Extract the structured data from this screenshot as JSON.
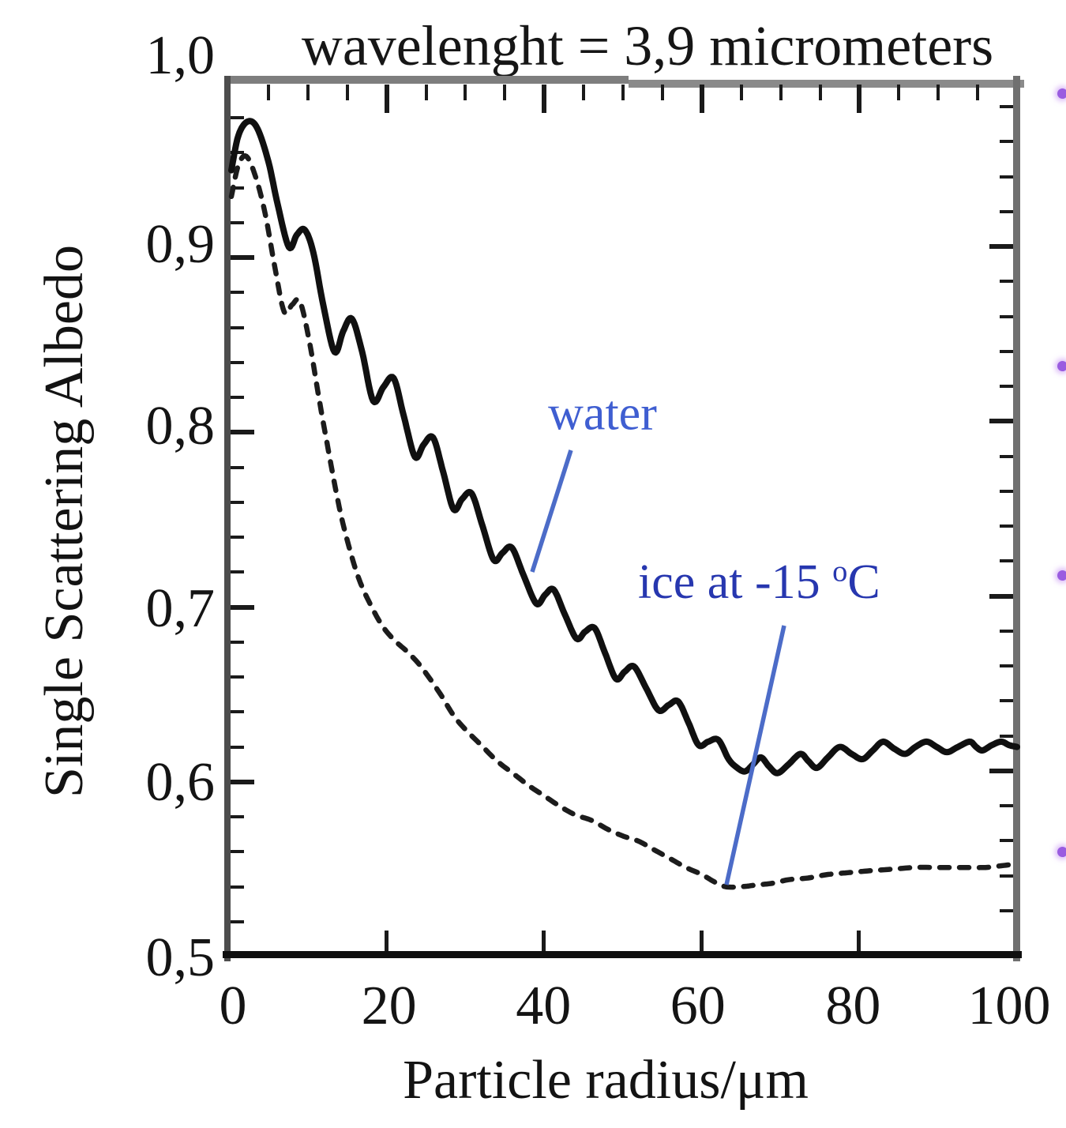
{
  "figure": {
    "title": "wavelenght = 3,9 micrometers",
    "y_axis": {
      "label": "Single Scattering Albedo",
      "ticks": [
        {
          "label": "1,0",
          "value": 1.0
        },
        {
          "label": "0,9",
          "value": 0.9
        },
        {
          "label": "0,8",
          "value": 0.8
        },
        {
          "label": "0,7",
          "value": 0.7
        },
        {
          "label": "0,6",
          "value": 0.6
        },
        {
          "label": "0,5",
          "value": 0.5
        }
      ],
      "range": [
        0.5,
        1.0
      ],
      "minor_step": 0.02
    },
    "x_axis": {
      "label": "Particle radius/μm",
      "ticks": [
        {
          "label": "0",
          "value": 0
        },
        {
          "label": "20",
          "value": 20
        },
        {
          "label": "40",
          "value": 40
        },
        {
          "label": "60",
          "value": 60
        },
        {
          "label": "80",
          "value": 80
        },
        {
          "label": "100",
          "value": 100
        }
      ],
      "range": [
        0,
        100
      ],
      "minor_step": 5
    },
    "annotations": {
      "water": {
        "text": "water",
        "color": "#3f5ed1"
      },
      "ice": {
        "text_main": "ice at -15",
        "sup_text": "o",
        "text_end": "C",
        "color": "#2737af"
      }
    },
    "pointer_color": "#4c6cc8",
    "curve_color": "#101010",
    "artifact_dot_color": "#9a5ce0"
  },
  "chart_data": {
    "type": "line",
    "title": "wavelenght = 3,9 micrometers",
    "xlabel": "Particle radius/μm",
    "ylabel": "Single Scattering Albedo",
    "xlim": [
      0,
      100
    ],
    "ylim": [
      0.5,
      1.0
    ],
    "grid": false,
    "legend_position": "inline-annotations",
    "series": [
      {
        "name": "water",
        "line_style": "solid",
        "points": [
          [
            0.3,
            0.95
          ],
          [
            1.2,
            0.97
          ],
          [
            2.4,
            0.978
          ],
          [
            3.6,
            0.974
          ],
          [
            5.0,
            0.955
          ],
          [
            6.2,
            0.93
          ],
          [
            7.6,
            0.906
          ],
          [
            8.6,
            0.913
          ],
          [
            9.6,
            0.916
          ],
          [
            10.7,
            0.903
          ],
          [
            12.0,
            0.872
          ],
          [
            13.4,
            0.846
          ],
          [
            14.5,
            0.858
          ],
          [
            15.6,
            0.865
          ],
          [
            16.9,
            0.846
          ],
          [
            18.3,
            0.818
          ],
          [
            19.6,
            0.826
          ],
          [
            20.9,
            0.831
          ],
          [
            22.2,
            0.809
          ],
          [
            23.6,
            0.786
          ],
          [
            24.7,
            0.793
          ],
          [
            25.9,
            0.797
          ],
          [
            27.2,
            0.777
          ],
          [
            28.5,
            0.756
          ],
          [
            29.6,
            0.762
          ],
          [
            30.8,
            0.765
          ],
          [
            32.2,
            0.746
          ],
          [
            33.6,
            0.727
          ],
          [
            34.7,
            0.731
          ],
          [
            35.9,
            0.734
          ],
          [
            37.4,
            0.718
          ],
          [
            39.0,
            0.702
          ],
          [
            40.1,
            0.707
          ],
          [
            41.2,
            0.71
          ],
          [
            42.6,
            0.696
          ],
          [
            44.1,
            0.682
          ],
          [
            45.2,
            0.686
          ],
          [
            46.4,
            0.688
          ],
          [
            47.7,
            0.674
          ],
          [
            49.1,
            0.659
          ],
          [
            50.2,
            0.663
          ],
          [
            51.4,
            0.666
          ],
          [
            52.9,
            0.654
          ],
          [
            54.5,
            0.641
          ],
          [
            55.8,
            0.644
          ],
          [
            57.0,
            0.646
          ],
          [
            58.3,
            0.634
          ],
          [
            59.6,
            0.621
          ],
          [
            60.8,
            0.623
          ],
          [
            62.1,
            0.624
          ],
          [
            63.4,
            0.613
          ],
          [
            64.5,
            0.608
          ],
          [
            65.5,
            0.606
          ],
          [
            66.5,
            0.61
          ],
          [
            67.5,
            0.614
          ],
          [
            68.5,
            0.609
          ],
          [
            69.6,
            0.605
          ],
          [
            71.0,
            0.61
          ],
          [
            72.5,
            0.616
          ],
          [
            73.5,
            0.612
          ],
          [
            74.6,
            0.608
          ],
          [
            76.0,
            0.614
          ],
          [
            77.5,
            0.62
          ],
          [
            79.0,
            0.616
          ],
          [
            80.4,
            0.613
          ],
          [
            81.7,
            0.618
          ],
          [
            83.0,
            0.623
          ],
          [
            84.4,
            0.619
          ],
          [
            85.8,
            0.616
          ],
          [
            87.1,
            0.62
          ],
          [
            88.5,
            0.623
          ],
          [
            89.8,
            0.62
          ],
          [
            91.1,
            0.617
          ],
          [
            92.5,
            0.62
          ],
          [
            94.0,
            0.623
          ],
          [
            94.8,
            0.62
          ],
          [
            95.6,
            0.618
          ],
          [
            96.8,
            0.621
          ],
          [
            98.0,
            0.623
          ],
          [
            99.0,
            0.621
          ],
          [
            100,
            0.62
          ]
        ]
      },
      {
        "name": "ice at -15 °C",
        "line_style": "dashed",
        "points": [
          [
            0.3,
            0.935
          ],
          [
            1.2,
            0.953
          ],
          [
            2.2,
            0.958
          ],
          [
            3.4,
            0.946
          ],
          [
            4.6,
            0.925
          ],
          [
            5.8,
            0.895
          ],
          [
            7.0,
            0.869
          ],
          [
            8.0,
            0.873
          ],
          [
            9.0,
            0.875
          ],
          [
            10.2,
            0.852
          ],
          [
            11.4,
            0.82
          ],
          [
            12.6,
            0.79
          ],
          [
            14.0,
            0.757
          ],
          [
            15.2,
            0.735
          ],
          [
            16.5,
            0.716
          ],
          [
            18.0,
            0.701
          ],
          [
            19.5,
            0.689
          ],
          [
            21.0,
            0.681
          ],
          [
            22.5,
            0.675
          ],
          [
            24.0,
            0.668
          ],
          [
            25.5,
            0.659
          ],
          [
            27.0,
            0.649
          ],
          [
            28.5,
            0.638
          ],
          [
            30.0,
            0.63
          ],
          [
            32.0,
            0.621
          ],
          [
            34.0,
            0.612
          ],
          [
            36.0,
            0.605
          ],
          [
            38.0,
            0.598
          ],
          [
            40.0,
            0.592
          ],
          [
            42.0,
            0.586
          ],
          [
            44.0,
            0.581
          ],
          [
            46.0,
            0.578
          ],
          [
            48.0,
            0.573
          ],
          [
            50.0,
            0.569
          ],
          [
            52.0,
            0.566
          ],
          [
            54.0,
            0.561
          ],
          [
            56.0,
            0.556
          ],
          [
            58.0,
            0.551
          ],
          [
            60.0,
            0.547
          ],
          [
            61.5,
            0.543
          ],
          [
            63.0,
            0.54
          ],
          [
            65.0,
            0.54
          ],
          [
            67.0,
            0.541
          ],
          [
            69.0,
            0.542
          ],
          [
            71.0,
            0.544
          ],
          [
            73.5,
            0.545
          ],
          [
            76.0,
            0.547
          ],
          [
            78.5,
            0.548
          ],
          [
            81.0,
            0.549
          ],
          [
            84.0,
            0.55
          ],
          [
            87.0,
            0.551
          ],
          [
            90.0,
            0.551
          ],
          [
            93.0,
            0.551
          ],
          [
            96.0,
            0.551
          ],
          [
            98.0,
            0.552
          ],
          [
            100,
            0.553
          ]
        ]
      }
    ]
  }
}
